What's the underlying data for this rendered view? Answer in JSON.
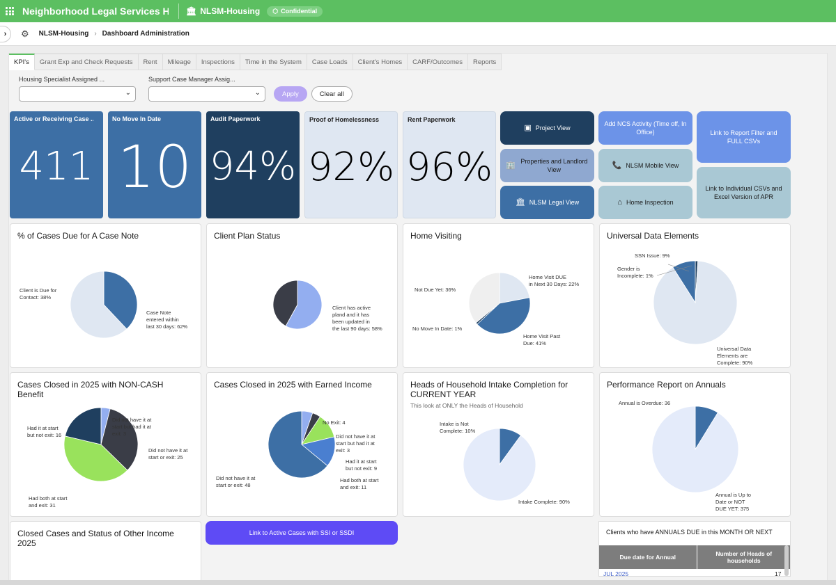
{
  "header": {
    "app_title": "Neighborhood Legal Services H...",
    "workspace": "NLSM-Housing",
    "badge": "Confidential"
  },
  "breadcrumb": {
    "item1": "NLSM-Housing",
    "item2": "Dashboard Administration"
  },
  "tabs": [
    "KPI's",
    "Grant Exp and Check Requests",
    "Rent",
    "Mileage",
    "Inspections",
    "Time in the System",
    "Case Loads",
    "Client's Homes",
    "CARF/Outcomes",
    "Reports"
  ],
  "filters": {
    "f1_label": "Housing Specialist Assigned ...",
    "f2_label": "Support Case Manager Assig...",
    "apply": "Apply",
    "clear": "Clear all"
  },
  "kpis": [
    {
      "title": "Active or Receiving Case ...",
      "value": "411"
    },
    {
      "title": "No Move In Date",
      "value": "10"
    },
    {
      "title": "Audit Paperwork",
      "value": "94%"
    },
    {
      "title": "Proof of Homelessness",
      "value": "92%"
    },
    {
      "title": "Rent Paperwork",
      "value": "96%"
    }
  ],
  "nav_buttons": {
    "project_view": "Project View",
    "properties": "Properties and Landlord View",
    "legal_view": "NLSM Legal View",
    "ncs_activity": "Add NCS Activity (Time off, In Office)",
    "mobile_view": "NLSM Mobile View",
    "home_inspection": "Home Inspection",
    "report_filter": "Link to Report Filter and FULL CSVs",
    "individual_csvs": "Link to Individual CSVs and Excel Version of APR"
  },
  "colors": {
    "green": "#5cbf61",
    "dark_navy": "#1f3f5f",
    "mid_blue": "#3d6fa5",
    "light_blue": "#dfe7f2",
    "purple": "#5e4bf5",
    "lime": "#99e25c"
  },
  "cards": {
    "case_note": {
      "title": "% of Cases Due for A Case Note",
      "l1a": "Client is Due for",
      "l1b": "Contact: 38%",
      "l2a": "Case Note",
      "l2b": "entered within",
      "l2c": "last 30 days: 62%"
    },
    "client_plan": {
      "title": "Client Plan Status",
      "l1a": "Client has active",
      "l1b": "pland and it has",
      "l1c": "been updated in",
      "l1d": "the last 90 days: 58%"
    },
    "home_visiting": {
      "title": "Home Visiting",
      "l1": "Not Due Yet: 36%",
      "l2a": "Home Visit DUE",
      "l2b": "in Next 30 Days: 22%",
      "l3": "No Move In Date: 1%",
      "l4a": "Home Visit Past",
      "l4b": "Due: 41%"
    },
    "ude": {
      "title": "Universal Data Elements",
      "l1": "SSN Issue: 9%",
      "l2a": "Gender is",
      "l2b": "Incomplete: 1%",
      "l3a": "Universal Data",
      "l3b": "Elements are",
      "l3c": "Complete: 90%"
    },
    "noncash": {
      "title": "Cases Closed in 2025 with NON-CASH Benefit",
      "l1a": "Had it at start",
      "l1b": "but not exit: 16",
      "l2a": "Did not have it at",
      "l2b": "start but had it at",
      "l2c": "exit: 3",
      "l3a": "Did not have it at",
      "l3b": "start or exit: 25",
      "l4a": "Had both at start",
      "l4b": "and exit: 31"
    },
    "earned": {
      "title": "Cases Closed in 2025 with Earned Income",
      "l1": "No Exit: 4",
      "l2a": "Did not have it at",
      "l2b": "start but had it at",
      "l2c": "exit: 3",
      "l3a": "Had it at start",
      "l3b": "but not exit: 9",
      "l4a": "Had both at start",
      "l4b": "and exit: 11",
      "l5a": "Did not have it at",
      "l5b": "start or exit: 48"
    },
    "intake": {
      "title": "Heads of Household Intake Completion for CURRENT YEAR",
      "subtitle": "This look at ONLY the Heads of Household",
      "l1a": "Intake is Not",
      "l1b": "Complete: 10%",
      "l2": "Intake Complete: 90%"
    },
    "annuals": {
      "title": "Performance Report on Annuals",
      "l1": "Annual is Overdue: 36",
      "l2a": "Annual is Up to",
      "l2b": "Date or NOT",
      "l2c": "DUE YET: 375"
    },
    "other_income": {
      "title": "Closed Cases and Status of Other Income 2025"
    }
  },
  "link_ssi": "Link to Active Cases with SSI or SSDI",
  "annual_table": {
    "title": "Clients who have ANNUALS DUE in this MONTH OR NEXT",
    "col1": "Due date for Annual",
    "col2": "Number of Heads of households",
    "row_date": "JUL 2025",
    "row_count": "17"
  },
  "chart_data": [
    {
      "type": "pie",
      "title": "% of Cases Due for A Case Note",
      "labels": [
        "Client is Due for Contact",
        "Case Note entered within last 30 days"
      ],
      "values": [
        38,
        62
      ],
      "colors": [
        "#3d6fa5",
        "#dfe7f2"
      ]
    },
    {
      "type": "pie",
      "title": "Client Plan Status",
      "labels": [
        "Client has active pland and it has been updated in the last 90 days",
        ""
      ],
      "values": [
        58,
        42
      ],
      "colors": [
        "#93aef0",
        "#3a3d47"
      ]
    },
    {
      "type": "pie",
      "title": "Home Visiting",
      "labels": [
        "Home Visit DUE in Next 30 Days",
        "Home Visit Past Due",
        "No Move In Date",
        "Not Due Yet"
      ],
      "values": [
        22,
        41,
        1,
        36
      ],
      "colors": [
        "#dfe7f2",
        "#3d6fa5",
        "#1f3f5f",
        "#efefef"
      ]
    },
    {
      "type": "pie",
      "title": "Universal Data Elements",
      "labels": [
        "Gender is Incomplete",
        "Universal Data Elements are Complete",
        "SSN Issue"
      ],
      "values": [
        1,
        90,
        9
      ],
      "colors": [
        "#1f3f5f",
        "#dfe7f2",
        "#3d6fa5"
      ]
    },
    {
      "type": "pie",
      "title": "Cases Closed in 2025 with NON-CASH Benefit",
      "labels": [
        "Did not have it at start but had it at exit",
        "Did not have it at start or exit",
        "Had both at start and exit",
        "Had it at start but not exit"
      ],
      "values": [
        3,
        25,
        31,
        16
      ],
      "colors": [
        "#93aef0",
        "#3a3d47",
        "#99e25c",
        "#1f3f5f"
      ]
    },
    {
      "type": "pie",
      "title": "Cases Closed in 2025 with Earned Income",
      "labels": [
        "No Exit",
        "Did not have it at start but had it at exit",
        "Had it at start but not exit",
        "Had both at start and exit",
        "Did not have it at start or exit"
      ],
      "values": [
        4,
        3,
        9,
        11,
        48
      ],
      "colors": [
        "#93aef0",
        "#3a3d47",
        "#99e25c",
        "#4a7fd0",
        "#3d6fa5"
      ]
    },
    {
      "type": "pie",
      "title": "Heads of Household Intake Completion for CURRENT YEAR",
      "labels": [
        "Intake is Not Complete",
        "Intake Complete"
      ],
      "values": [
        10,
        90
      ],
      "colors": [
        "#3d6fa5",
        "#e4ebfa"
      ]
    },
    {
      "type": "pie",
      "title": "Performance Report on Annuals",
      "labels": [
        "Annual is Overdue",
        "Annual is Up to Date or NOT DUE YET"
      ],
      "values": [
        36,
        375
      ],
      "colors": [
        "#3d6fa5",
        "#e4ebfa"
      ]
    }
  ]
}
